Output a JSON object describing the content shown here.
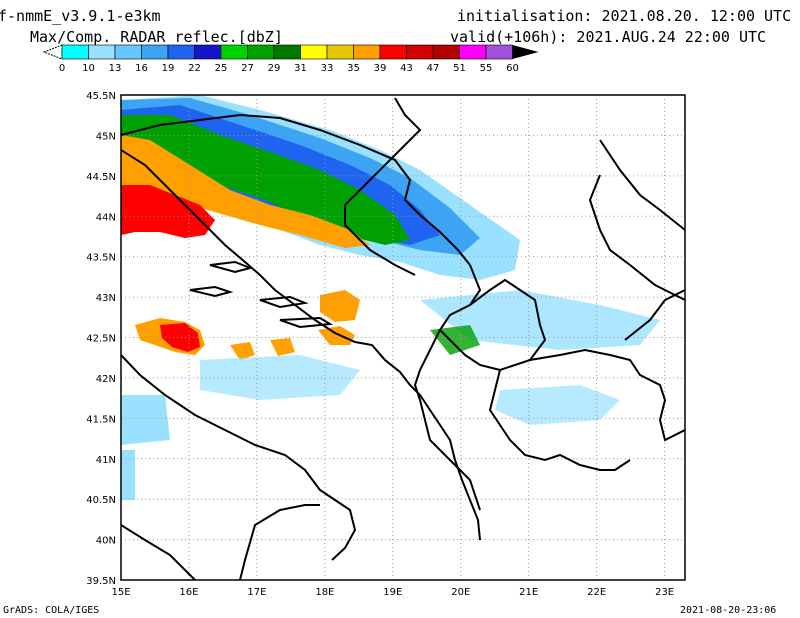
{
  "header": {
    "model": "f-nmmE_v3.9.1-e3km",
    "field": "Max/Comp. RADAR reflec.[dbZ]",
    "init": "initialisation: 2021.08.20. 12:00 UTC",
    "valid": "valid(+106h): 2021.AUG.24 22:00 UTC"
  },
  "colorbar": {
    "labels": [
      "0",
      "10",
      "13",
      "16",
      "19",
      "22",
      "25",
      "27",
      "29",
      "31",
      "33",
      "35",
      "39",
      "43",
      "47",
      "51",
      "55",
      "60"
    ],
    "colors": [
      "#00ffff",
      "#99e1ff",
      "#66c6ff",
      "#3da4f5",
      "#1e64f0",
      "#1414c8",
      "#00d200",
      "#00a000",
      "#007800",
      "#ffff00",
      "#e6c800",
      "#ffa000",
      "#ff0000",
      "#d20000",
      "#b40000",
      "#ff00ff",
      "#a050dc",
      "#000000"
    ]
  },
  "map": {
    "lat_labels": [
      "45.5N",
      "45N",
      "44.5N",
      "44N",
      "43.5N",
      "43N",
      "42.5N",
      "42N",
      "41.5N",
      "41N",
      "40.5N",
      "40N",
      "39.5N"
    ],
    "lon_labels": [
      "15E",
      "16E",
      "17E",
      "18E",
      "19E",
      "20E",
      "21E",
      "22E",
      "23E"
    ],
    "domain": {
      "lon": [
        15,
        23.3
      ],
      "lat": [
        39.5,
        45.5
      ]
    }
  },
  "footer": {
    "left": "GrADS: COLA/IGES",
    "right": "2021-08-20-23:06"
  }
}
